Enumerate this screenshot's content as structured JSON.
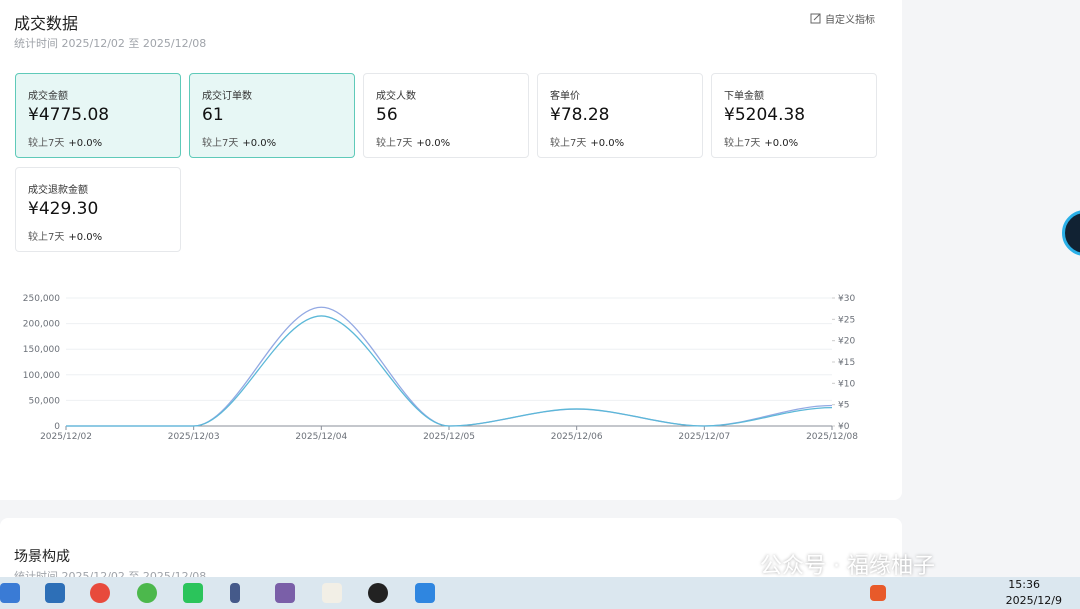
{
  "header": {
    "title": "成交数据",
    "subtitle": "统计时间 2025/12/02 至 2025/12/08",
    "custom_button": "自定义指标"
  },
  "cards": [
    {
      "label": "成交金额",
      "value": "¥4775.08",
      "compare": "较上7天",
      "change": "+0.0%",
      "selected": true
    },
    {
      "label": "成交订单数",
      "value": "61",
      "compare": "较上7天",
      "change": "+0.0%",
      "selected": true
    },
    {
      "label": "成交人数",
      "value": "56",
      "compare": "较上7天",
      "change": "+0.0%",
      "selected": false
    },
    {
      "label": "客单价",
      "value": "¥78.28",
      "compare": "较上7天",
      "change": "+0.0%",
      "selected": false
    },
    {
      "label": "下单金额",
      "value": "¥5204.38",
      "compare": "较上7天",
      "change": "+0.0%",
      "selected": false
    },
    {
      "label": "成交退款金额",
      "value": "¥429.30",
      "compare": "较上7天",
      "change": "+0.0%",
      "selected": false
    }
  ],
  "chart_data": {
    "type": "line",
    "categories": [
      "2025/12/02",
      "2025/12/03",
      "2025/12/04",
      "2025/12/05",
      "2025/12/06",
      "2025/12/07",
      "2025/12/08"
    ],
    "series": [
      {
        "color": "#93a9e3",
        "values": [
          0,
          0,
          232000,
          0,
          33000,
          0,
          40000
        ]
      },
      {
        "color": "#5cb8d8",
        "axis": "y2",
        "values": [
          0,
          0,
          25.8,
          0,
          4,
          0,
          4.3
        ]
      }
    ],
    "ylim": [
      0,
      250000
    ],
    "yticks": [
      {
        "value": 0,
        "label": "0"
      },
      {
        "value": 50000,
        "label": "50,000"
      },
      {
        "value": 100000,
        "label": "100,000"
      },
      {
        "value": 150000,
        "label": "150,000"
      },
      {
        "value": 200000,
        "label": "200,000"
      },
      {
        "value": 250000,
        "label": "250,000"
      }
    ],
    "y2lim": [
      0,
      30
    ],
    "y2ticks": [
      {
        "value": 0,
        "label": "¥0"
      },
      {
        "value": 5,
        "label": "¥5"
      },
      {
        "value": 10,
        "label": "¥10"
      },
      {
        "value": 15,
        "label": "¥15"
      },
      {
        "value": 20,
        "label": "¥20"
      },
      {
        "value": 25,
        "label": "¥25"
      },
      {
        "value": 30,
        "label": "¥30"
      }
    ],
    "grid": true
  },
  "section2": {
    "title": "场景构成",
    "subtitle": "统计时间 2025/12/02 至 2025/12/08"
  },
  "watermark": "公众号 · 福缘柚子",
  "taskbar": {
    "time": "15:36",
    "date": "2025/12/9"
  }
}
